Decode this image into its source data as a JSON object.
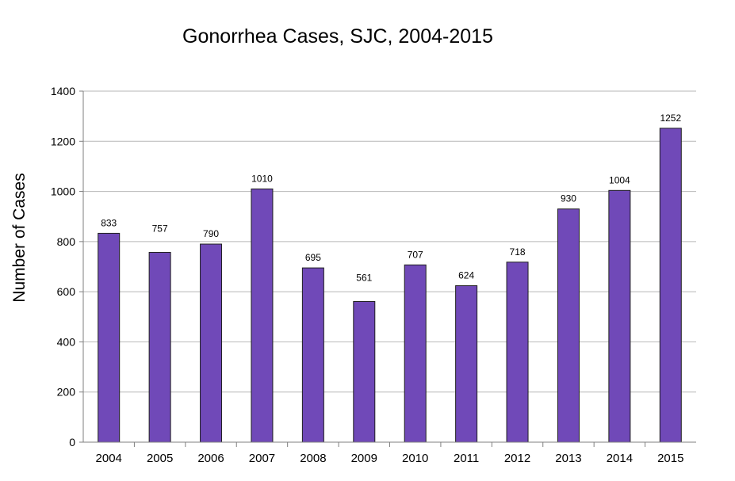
{
  "chart_data": {
    "type": "bar",
    "title": "Gonorrhea Cases, SJC, 2004-2015",
    "xlabel": "",
    "ylabel": "Number of Cases",
    "categories": [
      "2004",
      "2005",
      "2006",
      "2007",
      "2008",
      "2009",
      "2010",
      "2011",
      "2012",
      "2013",
      "2014",
      "2015"
    ],
    "series": [
      {
        "values": [
          833,
          757,
          790,
          1010,
          695,
          561,
          707,
          624,
          718,
          930,
          1004,
          1252
        ]
      }
    ],
    "data_labels": [
      "833",
      "757",
      "790",
      "1010",
      "695",
      "561",
      "707",
      "624",
      "718",
      "930",
      "1004",
      "1252"
    ],
    "ylim": [
      0,
      1400
    ],
    "yticks": [
      0,
      200,
      400,
      600,
      800,
      1000,
      1200,
      1400
    ],
    "ytick_labels": [
      "0",
      "200",
      "400",
      "600",
      "800",
      "1000",
      "1200",
      "1400"
    ],
    "grid": true,
    "legend": "none",
    "colors": {
      "bar_fill": "#7049b8",
      "bar_stroke": "#1f1f1f",
      "grid": "#b7b7b7",
      "axis": "#7f7f7f",
      "background": "#ffffff"
    }
  }
}
